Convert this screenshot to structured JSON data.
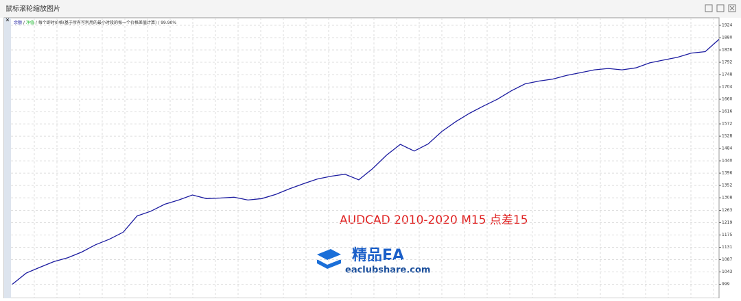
{
  "window": {
    "title": "鼠标滚轮缩放图片"
  },
  "chart_data": {
    "type": "line",
    "categories": [
      null,
      null,
      null,
      null,
      null,
      null,
      null,
      null,
      null,
      null,
      null,
      null,
      null,
      null,
      null,
      null,
      null,
      null,
      null,
      null,
      null,
      null,
      null,
      null,
      null,
      null,
      null,
      null,
      null,
      null,
      null,
      null,
      null,
      null,
      null,
      null,
      null,
      null,
      null,
      null,
      null,
      null,
      null,
      null,
      null,
      null,
      null,
      null,
      null,
      null,
      null,
      null
    ],
    "series": [
      {
        "name": "余额",
        "color": "#1c1ca0",
        "values": [
          999,
          1039,
          1060,
          1080,
          1094,
          1114,
          1140,
          1160,
          1185,
          1243,
          1260,
          1285,
          1300,
          1318,
          1305,
          1307,
          1310,
          1300,
          1305,
          1320,
          1340,
          1358,
          1375,
          1385,
          1392,
          1372,
          1412,
          1460,
          1499,
          1475,
          1500,
          1545,
          1580,
          1610,
          1636,
          1660,
          1690,
          1715,
          1725,
          1732,
          1745,
          1755,
          1765,
          1770,
          1765,
          1772,
          1790,
          1800,
          1810,
          1825,
          1830,
          1874
        ]
      }
    ],
    "legend_extra": [
      {
        "name": "净值",
        "color": "#22bb33"
      }
    ],
    "model_text": "每个即时价格(基于所有可利用的最小时段的每一个价格差值计算) / 99.90%",
    "ylim": [
      949,
      1951
    ],
    "yticks": [
      999,
      1043,
      1087,
      1131,
      1175,
      1219,
      1263,
      1308,
      1352,
      1396,
      1440,
      1484,
      1528,
      1572,
      1616,
      1660,
      1704,
      1748,
      1792,
      1836,
      1880,
      1924
    ],
    "grid": true,
    "annotation": "AUDCAD 2010-2020 M15  点差15",
    "logo": {
      "name": "精品EA",
      "site": "eaclubshare.com"
    }
  }
}
